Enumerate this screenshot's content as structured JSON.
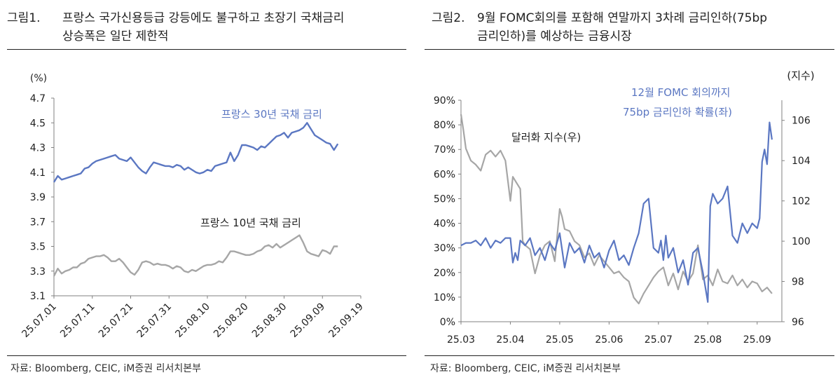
{
  "figure1": {
    "title_number": "그림1.",
    "title_line1": "프랑스 국가신용등급 강등에도 불구하고 초장기 국채금리",
    "title_line2": "상승폭은 일단 제한적",
    "source": "자료: Bloomberg, CEIC, iM증권 리서치본부",
    "colors": {
      "fr30": "#5B77C2",
      "fr10": "#A6A6A6",
      "axis": "#808080"
    }
  },
  "figure2": {
    "title_number": "그림2.",
    "title_line1": "9월 FOMC회의를 포함해 연말까지 3차례 금리인하(75bp",
    "title_line2": "금리인하)를 예상하는 금융시장",
    "source": "자료: Bloomberg, CEIC, iM증권 리서치본부",
    "colors": {
      "prob": "#5B77C2",
      "dxy": "#A6A6A6",
      "axis": "#808080"
    }
  },
  "chart_data": [
    {
      "type": "line",
      "title": "프랑스 국가신용등급 강등에도 불구하고 초장기 국채금리 상승폭은 일단 제한적",
      "ylabel": "(%)",
      "ylim": [
        3.1,
        4.7
      ],
      "yticks": [
        "4.7",
        "4.5",
        "4.3",
        "4.1",
        "3.9",
        "3.7",
        "3.5",
        "3.3",
        "3.1"
      ],
      "ytick_values": [
        4.7,
        4.5,
        4.3,
        4.1,
        3.9,
        3.7,
        3.5,
        3.3,
        3.1
      ],
      "xticks": [
        "25.07.01",
        "25.07.11",
        "25.07.21",
        "25.07.31",
        "25.08.10",
        "25.08.20",
        "25.08.30",
        "25.09.09",
        "25.09.19"
      ],
      "x_range_days": [
        0,
        80
      ],
      "series": [
        {
          "name": "프랑스 30년 국채 금리",
          "x": [
            0,
            1,
            2,
            3,
            4,
            5,
            6,
            7,
            8,
            9,
            10,
            11,
            12,
            13,
            14,
            15,
            16,
            17,
            18,
            19,
            20,
            21,
            22,
            23,
            24,
            25,
            26,
            27,
            28,
            29,
            30,
            31,
            32,
            33,
            34,
            35,
            36,
            37,
            38,
            39,
            40,
            41,
            42,
            43,
            44,
            45,
            46,
            47,
            48,
            49,
            50,
            51,
            52,
            53,
            54,
            55,
            56,
            57,
            58,
            59,
            60,
            61,
            62,
            63,
            64,
            65,
            66,
            67,
            68,
            69,
            70,
            71,
            72,
            73,
            74
          ],
          "values": [
            4.02,
            4.07,
            4.04,
            4.05,
            4.06,
            4.07,
            4.08,
            4.09,
            4.13,
            4.14,
            4.17,
            4.19,
            4.2,
            4.21,
            4.22,
            4.23,
            4.24,
            4.21,
            4.2,
            4.19,
            4.22,
            4.18,
            4.14,
            4.11,
            4.09,
            4.14,
            4.18,
            4.17,
            4.16,
            4.15,
            4.15,
            4.14,
            4.16,
            4.15,
            4.12,
            4.14,
            4.12,
            4.1,
            4.09,
            4.1,
            4.12,
            4.11,
            4.15,
            4.16,
            4.17,
            4.18,
            4.26,
            4.19,
            4.24,
            4.32,
            4.32,
            4.31,
            4.3,
            4.28,
            4.31,
            4.3,
            4.33,
            4.36,
            4.39,
            4.4,
            4.42,
            4.38,
            4.42,
            4.43,
            4.44,
            4.46,
            4.5,
            4.45,
            4.4,
            4.38,
            4.36,
            4.34,
            4.33,
            4.28,
            4.33
          ]
        },
        {
          "name": "프랑스 10년 국채 금리",
          "x": [
            0,
            1,
            2,
            3,
            4,
            5,
            6,
            7,
            8,
            9,
            10,
            11,
            12,
            13,
            14,
            15,
            16,
            17,
            18,
            19,
            20,
            21,
            22,
            23,
            24,
            25,
            26,
            27,
            28,
            29,
            30,
            31,
            32,
            33,
            34,
            35,
            36,
            37,
            38,
            39,
            40,
            41,
            42,
            43,
            44,
            45,
            46,
            47,
            48,
            49,
            50,
            51,
            52,
            53,
            54,
            55,
            56,
            57,
            58,
            59,
            60,
            61,
            62,
            63,
            64,
            65,
            66,
            67,
            68,
            69,
            70,
            71,
            72,
            73,
            74
          ],
          "values": [
            3.26,
            3.32,
            3.28,
            3.3,
            3.31,
            3.33,
            3.33,
            3.36,
            3.37,
            3.4,
            3.41,
            3.42,
            3.42,
            3.43,
            3.41,
            3.38,
            3.38,
            3.4,
            3.37,
            3.33,
            3.29,
            3.27,
            3.31,
            3.37,
            3.38,
            3.37,
            3.35,
            3.36,
            3.35,
            3.35,
            3.34,
            3.32,
            3.34,
            3.33,
            3.3,
            3.29,
            3.31,
            3.3,
            3.32,
            3.34,
            3.35,
            3.35,
            3.36,
            3.38,
            3.37,
            3.41,
            3.46,
            3.46,
            3.45,
            3.44,
            3.43,
            3.43,
            3.44,
            3.46,
            3.47,
            3.5,
            3.51,
            3.49,
            3.52,
            3.49,
            3.51,
            3.53,
            3.55,
            3.57,
            3.59,
            3.53,
            3.46,
            3.44,
            3.43,
            3.42,
            3.47,
            3.46,
            3.44,
            3.5,
            3.5
          ]
        }
      ],
      "annotations": [
        "프랑스 30년 국채 금리",
        "프랑스 10년 국채 금리"
      ]
    },
    {
      "type": "line",
      "title": "9월 FOMC회의를 포함해 연말까지 3차례 금리인하(75bp 금리인하)를 예상하는 금융시장",
      "ylabel_left": "",
      "ylabel_right": "(지수)",
      "ylim_left": [
        0,
        90
      ],
      "ylim_right": [
        96,
        107
      ],
      "yticks_left": [
        "0%",
        "10%",
        "20%",
        "30%",
        "40%",
        "50%",
        "60%",
        "70%",
        "80%",
        "90%"
      ],
      "ytick_values_left": [
        0,
        10,
        20,
        30,
        40,
        50,
        60,
        70,
        80,
        90
      ],
      "yticks_right": [
        "96",
        "98",
        "100",
        "102",
        "104",
        "106"
      ],
      "ytick_values_right": [
        96,
        98,
        100,
        102,
        104,
        106
      ],
      "xticks": [
        "25.03",
        "25.04",
        "25.05",
        "25.06",
        "25.07",
        "25.08",
        "25.09"
      ],
      "x_range_months": [
        0,
        6.5
      ],
      "series": [
        {
          "name": "12월 FOMC 회의까지 75bp 금리인하 확률(좌)",
          "axis": "left",
          "x": [
            0,
            0.1,
            0.2,
            0.3,
            0.4,
            0.5,
            0.6,
            0.7,
            0.8,
            0.9,
            1.0,
            1.05,
            1.1,
            1.15,
            1.2,
            1.3,
            1.4,
            1.5,
            1.6,
            1.7,
            1.8,
            1.9,
            2.0,
            2.1,
            2.2,
            2.3,
            2.4,
            2.5,
            2.6,
            2.7,
            2.8,
            2.9,
            3.0,
            3.1,
            3.2,
            3.3,
            3.4,
            3.5,
            3.6,
            3.7,
            3.8,
            3.9,
            4.0,
            4.05,
            4.1,
            4.15,
            4.2,
            4.3,
            4.4,
            4.5,
            4.6,
            4.7,
            4.8,
            4.9,
            5.0,
            5.05,
            5.1,
            5.2,
            5.3,
            5.4,
            5.5,
            5.6,
            5.7,
            5.8,
            5.9,
            6.0,
            6.05,
            6.1,
            6.15,
            6.2,
            6.25,
            6.3
          ],
          "values": [
            31,
            32,
            32,
            33,
            31,
            34,
            30,
            33,
            32,
            34,
            34,
            24,
            28,
            25,
            33,
            31,
            34,
            27,
            30,
            25,
            32,
            29,
            36,
            22,
            32,
            28,
            30,
            24,
            31,
            26,
            28,
            22,
            29,
            33,
            25,
            27,
            23,
            30,
            36,
            48,
            50,
            30,
            28,
            33,
            25,
            35,
            26,
            30,
            20,
            25,
            15,
            28,
            30,
            20,
            8,
            47,
            52,
            48,
            50,
            55,
            35,
            32,
            40,
            36,
            40,
            38,
            42,
            65,
            70,
            64,
            81,
            74
          ],
          "annotation": [
            "12월 FOMC 회의까지",
            "75bp 금리인하 확률(좌)"
          ]
        },
        {
          "name": "달러화 지수(우)",
          "axis": "right",
          "x": [
            0,
            0.05,
            0.1,
            0.2,
            0.3,
            0.4,
            0.5,
            0.6,
            0.7,
            0.8,
            0.9,
            1.0,
            1.05,
            1.1,
            1.2,
            1.25,
            1.3,
            1.4,
            1.5,
            1.6,
            1.7,
            1.8,
            1.9,
            2.0,
            2.05,
            2.1,
            2.2,
            2.3,
            2.4,
            2.5,
            2.6,
            2.7,
            2.8,
            2.9,
            3.0,
            3.1,
            3.2,
            3.3,
            3.4,
            3.5,
            3.6,
            3.7,
            3.8,
            3.9,
            4.0,
            4.1,
            4.2,
            4.3,
            4.4,
            4.5,
            4.6,
            4.7,
            4.8,
            4.9,
            5.0,
            5.1,
            5.2,
            5.3,
            5.4,
            5.5,
            5.6,
            5.7,
            5.8,
            5.9,
            6.0,
            6.1,
            6.2,
            6.3
          ],
          "values": [
            106.3,
            105.5,
            104.6,
            104.0,
            103.8,
            103.5,
            104.3,
            104.5,
            104.2,
            104.5,
            104.0,
            102.0,
            103.2,
            103.0,
            102.6,
            100.0,
            99.8,
            99.6,
            98.4,
            99.3,
            99.8,
            100.0,
            99.0,
            101.6,
            101.2,
            100.6,
            100.5,
            100.0,
            99.8,
            99.2,
            99.4,
            98.8,
            99.3,
            99.0,
            98.7,
            98.4,
            98.5,
            98.2,
            98.0,
            97.2,
            96.9,
            97.4,
            97.8,
            98.2,
            98.5,
            98.7,
            97.8,
            98.4,
            97.6,
            98.5,
            98.0,
            98.4,
            99.8,
            98.1,
            98.3,
            97.8,
            98.6,
            98.0,
            97.9,
            98.3,
            97.8,
            98.1,
            97.7,
            98.0,
            97.9,
            97.5,
            97.7,
            97.4
          ],
          "annotation": [
            "달러화 지수(우)"
          ]
        }
      ]
    }
  ]
}
